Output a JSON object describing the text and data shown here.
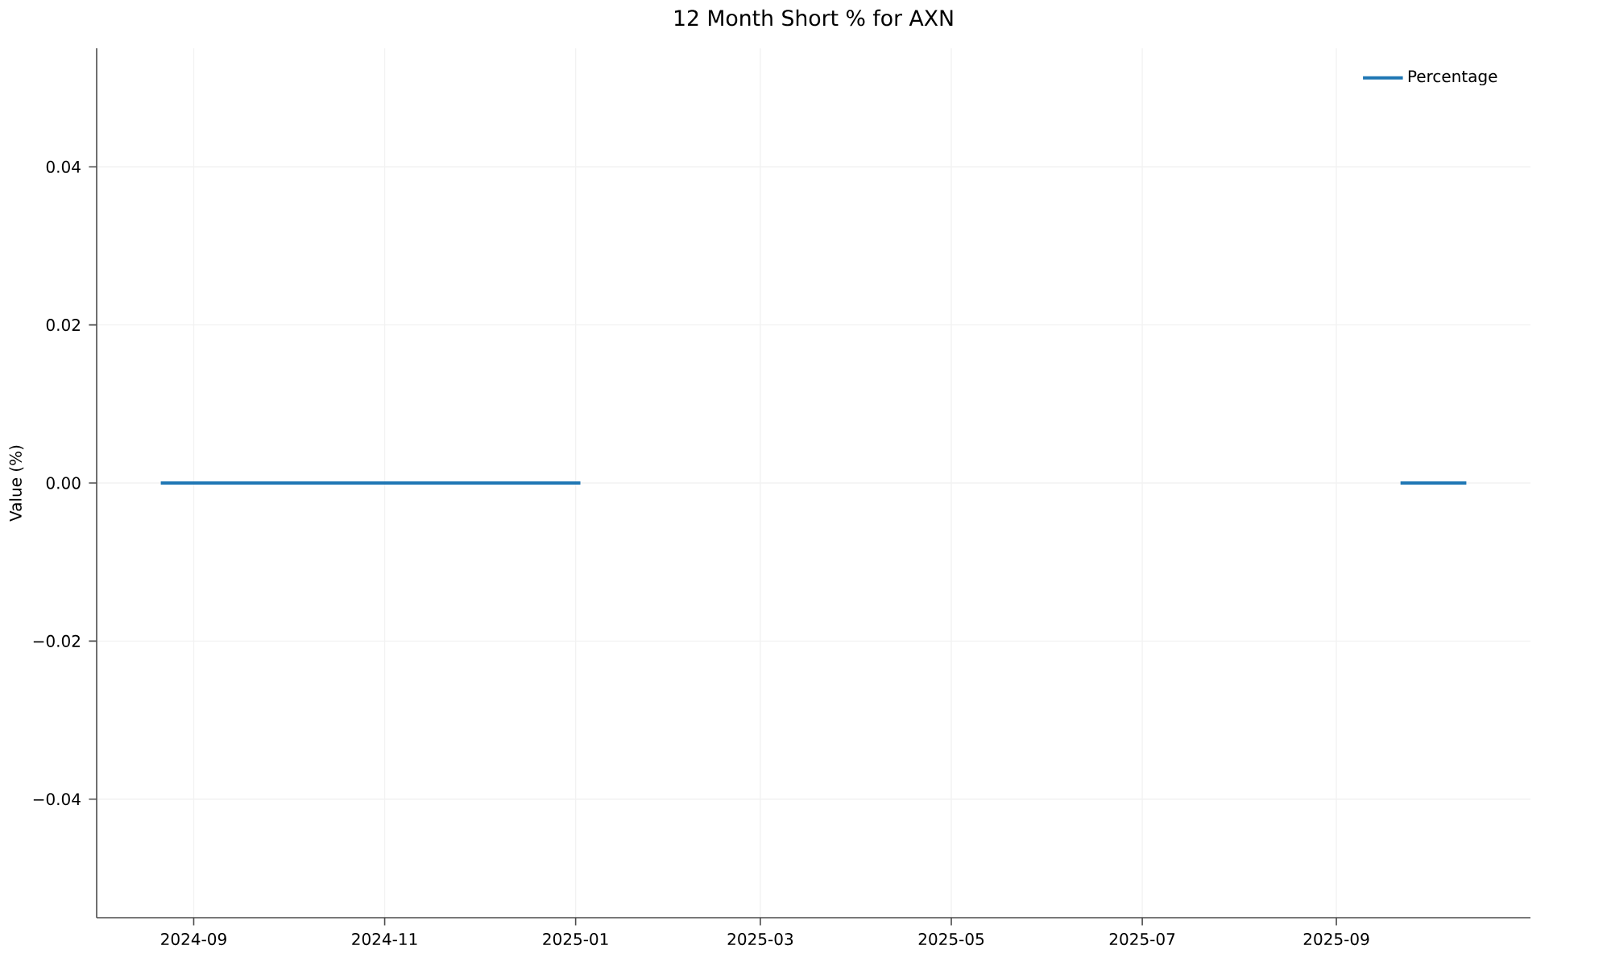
{
  "chart_data": {
    "type": "line",
    "title": "12 Month Short % for AXN",
    "ylabel": "Value (%)",
    "x": [
      "2024-08-22",
      "2025-01-02",
      "2025-01-16",
      "2025-09-22",
      "2025-10-12"
    ],
    "series": [
      {
        "name": "Percentage",
        "color": "#1f77b4",
        "values": [
          0,
          0,
          null,
          0,
          0
        ]
      }
    ],
    "xlim": [
      "2024-08-01",
      "2025-11-02"
    ],
    "xticks": [
      {
        "value": "2024-09-01",
        "label": "2024-09"
      },
      {
        "value": "2024-11-01",
        "label": "2024-11"
      },
      {
        "value": "2025-01-01",
        "label": "2025-01"
      },
      {
        "value": "2025-03-01",
        "label": "2025-03"
      },
      {
        "value": "2025-05-01",
        "label": "2025-05"
      },
      {
        "value": "2025-07-01",
        "label": "2025-07"
      },
      {
        "value": "2025-09-01",
        "label": "2025-09"
      }
    ],
    "ylim": [
      -0.055,
      0.055
    ],
    "yticks": [
      {
        "value": -0.04,
        "label": "−0.04"
      },
      {
        "value": -0.02,
        "label": "−0.02"
      },
      {
        "value": 0,
        "label": "0.00"
      },
      0.02,
      0.04
    ],
    "grid": true,
    "legend": "top right",
    "line_style": "solid"
  }
}
